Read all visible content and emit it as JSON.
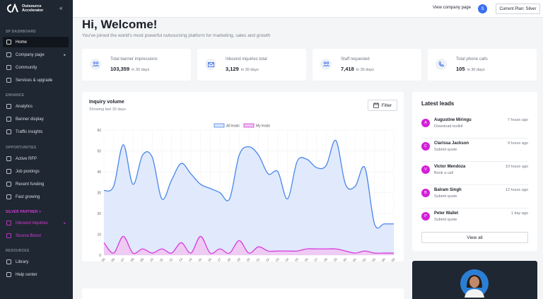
{
  "brand": {
    "line1": "Outsource",
    "line2": "Accelerator"
  },
  "sidebar": {
    "sections": [
      {
        "label": "SP DASHBOARD",
        "items": [
          {
            "label": "Home",
            "icon": "home-icon",
            "active": true
          },
          {
            "label": "Company page",
            "icon": "building-icon",
            "caret": "▸"
          },
          {
            "label": "Community",
            "icon": "users-icon"
          },
          {
            "label": "Services & upgrade",
            "icon": "tag-icon"
          }
        ]
      },
      {
        "label": "ENHANCE",
        "items": [
          {
            "label": "Analytics",
            "icon": "chart-icon"
          },
          {
            "label": "Banner display",
            "icon": "banner-icon"
          },
          {
            "label": "Traffic insights",
            "icon": "traffic-icon"
          }
        ]
      },
      {
        "label": "OPPORTUNITIES",
        "items": [
          {
            "label": "Active RFP",
            "icon": "document-icon"
          },
          {
            "label": "Job postings",
            "icon": "briefcase-icon"
          },
          {
            "label": "Recent funding",
            "icon": "dollar-icon"
          },
          {
            "label": "Fast growing",
            "icon": "trend-icon"
          }
        ]
      },
      {
        "label": "SILVER PARTNER +",
        "highlight": true,
        "items": [
          {
            "label": "Inbound inquiries",
            "icon": "inbox-icon",
            "caret": "▸"
          },
          {
            "label": "Source Boost",
            "icon": "boost-icon"
          }
        ]
      },
      {
        "label": "RESOURCES",
        "items": [
          {
            "label": "Library",
            "icon": "book-icon"
          },
          {
            "label": "Help center",
            "icon": "help-icon"
          }
        ]
      }
    ]
  },
  "topbar": {
    "view_company": "View company page",
    "avatar_initial": "S",
    "plan": "Current Plan: Silver"
  },
  "header": {
    "title": "Hi, Welcome!",
    "subtitle": "You've joined the world's most powerful outsourcing platform for marketing, sales and growth"
  },
  "stats": [
    {
      "label": "Total banner impressions",
      "value": "103,359",
      "period": "in 30 days",
      "icon": "users-group-icon"
    },
    {
      "label": "Inbound inquiries total",
      "value": "3,129",
      "period": "in 30 days",
      "icon": "mail-icon"
    },
    {
      "label": "Staff requested",
      "value": "7,418",
      "period": "in 30 days",
      "icon": "users-group-icon"
    },
    {
      "label": "Total phone calls",
      "value": "105",
      "period": "in 30 days",
      "icon": "phone-icon"
    }
  ],
  "inquiry": {
    "title": "Inquiry volume",
    "subtitle": "Showing last 30 days",
    "filter": "Filter"
  },
  "chart_data": {
    "type": "area",
    "x": [
      "2022-06-05",
      "2022-06-06",
      "2022-06-07",
      "2022-06-08",
      "2022-06-09",
      "2022-06-10",
      "2022-06-11",
      "2022-06-12",
      "2022-06-13",
      "2022-06-14",
      "2022-06-15",
      "2022-06-16",
      "2022-06-17",
      "2022-06-18",
      "2022-06-19",
      "2022-06-20",
      "2022-06-21",
      "2022-06-22",
      "2022-06-23",
      "2022-06-24",
      "2022-06-25",
      "2022-06-26",
      "2022-06-27",
      "2022-06-28",
      "2022-06-29",
      "2022-06-30",
      "2022-07-01",
      "2022-07-02",
      "2022-07-03",
      "2022-07-04",
      "2022-07-05"
    ],
    "series": [
      {
        "name": "All leads",
        "color": "#4a86e8",
        "fill": "#dbe6fb",
        "values": [
          31,
          33,
          53,
          34,
          48,
          47,
          27,
          36,
          44,
          39,
          34,
          32,
          30,
          27,
          48,
          52,
          48,
          39,
          40,
          27,
          45,
          46,
          42,
          43,
          55,
          34,
          33,
          42,
          15,
          15,
          15
        ]
      },
      {
        "name": "My leads",
        "color": "#d93bdc",
        "fill": "#f0c6f1",
        "values": [
          6,
          1,
          9,
          1,
          3,
          1,
          3,
          1,
          6,
          1,
          9,
          1,
          3,
          1,
          7,
          1,
          4,
          2,
          2,
          2,
          2,
          3,
          3,
          3,
          3,
          2,
          1,
          2,
          1,
          1,
          1
        ]
      }
    ],
    "yticks": [
      "0",
      "10",
      "20",
      "30",
      "40",
      "50",
      "60"
    ],
    "ylim": [
      0,
      60
    ],
    "legend": "top-center",
    "grid": true
  },
  "leads": {
    "title": "Latest leads",
    "items": [
      {
        "initial": "A",
        "name": "Augustine Miringu",
        "sub": "Download toolkit",
        "time": "7 hours ago"
      },
      {
        "initial": "C",
        "name": "Clarissa Jackson",
        "sub": "Submit quote",
        "time": "9 hours ago"
      },
      {
        "initial": "V",
        "name": "Victor Mendoza",
        "sub": "Book a call",
        "time": "10 hours ago"
      },
      {
        "initial": "B",
        "name": "Balram Singh",
        "sub": "Submit quote",
        "time": "12 hours ago"
      },
      {
        "initial": "P",
        "name": "Peter Wallet",
        "sub": "Submit quote",
        "time": "1 day ago"
      }
    ],
    "view_all": "View all"
  }
}
